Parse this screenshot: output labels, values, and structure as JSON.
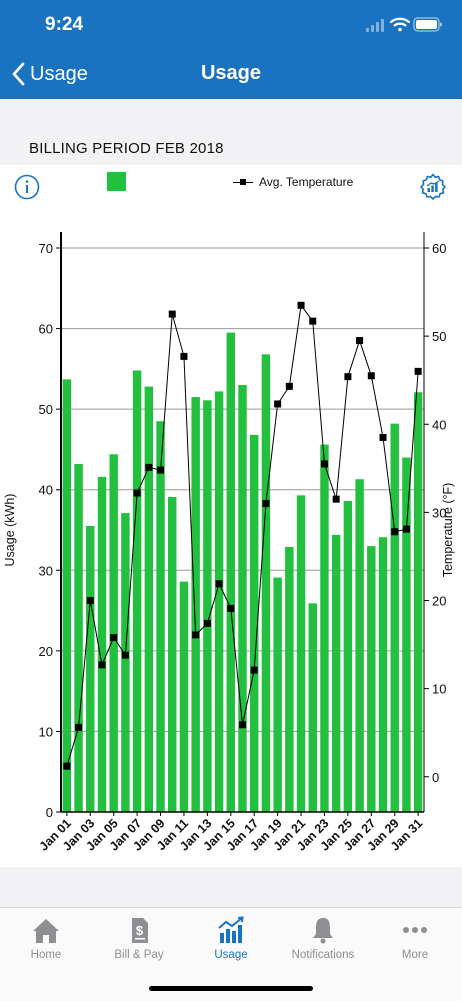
{
  "status_bar": {
    "time": "9:24"
  },
  "nav": {
    "back_label": "Usage",
    "title": "Usage"
  },
  "billing": {
    "title": "BILLING PERIOD FEB 2018"
  },
  "legend": {
    "usage_color": "#22c03e",
    "temp_label": "Avg. Temperature"
  },
  "chart_data": {
    "type": "bar",
    "categories": [
      "Jan 01",
      "Jan 02",
      "Jan 03",
      "Jan 04",
      "Jan 05",
      "Jan 06",
      "Jan 07",
      "Jan 08",
      "Jan 09",
      "Jan 10",
      "Jan 11",
      "Jan 12",
      "Jan 13",
      "Jan 14",
      "Jan 15",
      "Jan 16",
      "Jan 17",
      "Jan 18",
      "Jan 19",
      "Jan 20",
      "Jan 21",
      "Jan 22",
      "Jan 23",
      "Jan 24",
      "Jan 25",
      "Jan 26",
      "Jan 27",
      "Jan 28",
      "Jan 29",
      "Jan 30",
      "Jan 31"
    ],
    "tick_labels": [
      "Jan 01",
      "Jan 03",
      "Jan 05",
      "Jan 07",
      "Jan 09",
      "Jan 11",
      "Jan 13",
      "Jan 15",
      "Jan 17",
      "Jan 19",
      "Jan 21",
      "Jan 23",
      "Jan 25",
      "Jan 27",
      "Jan 29",
      "Jan 31"
    ],
    "series": [
      {
        "values": [
          53.7,
          43.2,
          35.5,
          41.6,
          44.4,
          37.1,
          54.8,
          52.8,
          48.5,
          39.1,
          28.6,
          51.5,
          51.1,
          52.2,
          59.5,
          53.0,
          46.8,
          56.8,
          29.1,
          32.9,
          39.3,
          25.9,
          45.6,
          34.4,
          38.6,
          41.3,
          33.0,
          34.1,
          48.2,
          44.0,
          52.1
        ]
      },
      {
        "name": "Avg. Temperature",
        "values": [
          1.2,
          5.6,
          20.0,
          12.7,
          15.8,
          13.8,
          32.2,
          35.1,
          34.8,
          52.5,
          47.7,
          16.1,
          17.4,
          21.9,
          19.1,
          5.9,
          12.1,
          31.0,
          42.3,
          44.3,
          53.5,
          51.7,
          35.5,
          31.5,
          45.4,
          49.5,
          45.5,
          38.5,
          27.8,
          28.1,
          46.0
        ]
      }
    ],
    "ylabel": "Usage (kWh)",
    "ylabel_right": "Temperature (°F)",
    "ylim": [
      0,
      70
    ],
    "yticks": [
      0,
      10,
      20,
      30,
      40,
      50,
      60,
      70
    ],
    "ylim_right": [
      -4,
      60
    ],
    "yticks_right": [
      0,
      10,
      20,
      30,
      40,
      50,
      60
    ],
    "grid": true,
    "legend": "top",
    "colors": {
      "bar": "#22c03e",
      "line": "#000000"
    }
  },
  "tabs": [
    {
      "label": "Home",
      "icon": "home-icon"
    },
    {
      "label": "Bill & Pay",
      "icon": "bill-icon"
    },
    {
      "label": "Usage",
      "icon": "usage-chart-icon",
      "active": true
    },
    {
      "label": "Notifications",
      "icon": "bell-icon"
    },
    {
      "label": "More",
      "icon": "more-icon"
    }
  ]
}
